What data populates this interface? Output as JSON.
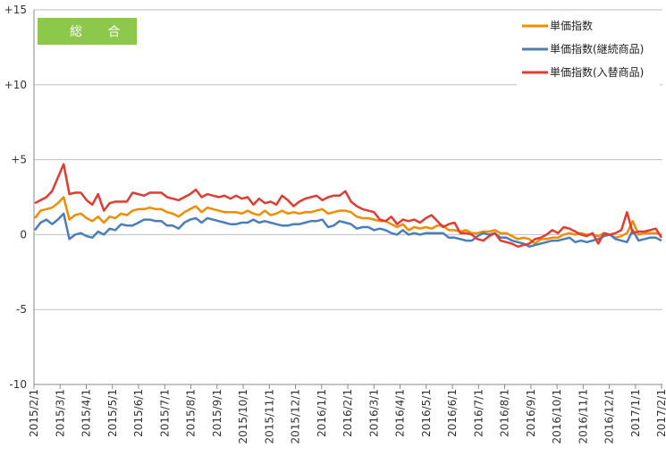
{
  "badge": {
    "label": "総 合",
    "color": "#8CC84B"
  },
  "chart_data": {
    "type": "line",
    "ylim": [
      -10,
      15
    ],
    "y_ticks": [
      -10,
      -5,
      0,
      5,
      10,
      15
    ],
    "y_tick_labels": [
      "-10",
      "-5",
      "0",
      "+5",
      "+10",
      "+15"
    ],
    "x_tick_labels": [
      "2015/2/1",
      "2015/3/1",
      "2015/4/1",
      "2015/5/1",
      "2015/6/1",
      "2015/7/1",
      "2015/8/1",
      "2015/9/1",
      "2015/10/1",
      "2015/11/1",
      "2015/12/1",
      "2016/1/1",
      "2016/2/1",
      "2016/3/1",
      "2016/4/1",
      "2016/5/1",
      "2016/6/1",
      "2016/7/1",
      "2016/8/1",
      "2016/9/1",
      "2016/10/1",
      "2016/11/1",
      "2016/12/1",
      "2017/1/1",
      "2017/2/1"
    ],
    "legend_position": "top-right",
    "grid": true,
    "series": [
      {
        "name": "単価指数",
        "color": "#F08C00",
        "values": [
          1.1,
          1.6,
          1.7,
          1.8,
          2.1,
          2.5,
          1.0,
          1.3,
          1.4,
          1.1,
          0.9,
          1.2,
          0.8,
          1.2,
          1.1,
          1.4,
          1.3,
          1.6,
          1.7,
          1.7,
          1.8,
          1.7,
          1.7,
          1.5,
          1.4,
          1.2,
          1.5,
          1.7,
          1.9,
          1.5,
          1.8,
          1.7,
          1.6,
          1.5,
          1.5,
          1.5,
          1.4,
          1.6,
          1.4,
          1.3,
          1.6,
          1.3,
          1.4,
          1.6,
          1.4,
          1.5,
          1.4,
          1.5,
          1.5,
          1.6,
          1.7,
          1.4,
          1.5,
          1.6,
          1.6,
          1.5,
          1.2,
          1.1,
          1.1,
          1.0,
          0.9,
          0.9,
          0.7,
          0.5,
          0.7,
          0.3,
          0.5,
          0.4,
          0.5,
          0.4,
          0.6,
          0.6,
          0.3,
          0.3,
          0.2,
          0.3,
          0.1,
          0.1,
          0.2,
          0.2,
          0.3,
          0.1,
          0.1,
          -0.1,
          -0.3,
          -0.2,
          -0.3,
          -0.6,
          -0.3,
          -0.3,
          -0.2,
          -0.2,
          0.0,
          0.1,
          0.0,
          0.1,
          0.0,
          0.0,
          -0.1,
          0.1,
          0.0,
          -0.2,
          -0.1,
          0.1,
          0.9,
          0.0,
          0.1,
          0.1,
          0.1,
          0.0
        ]
      },
      {
        "name": "単価指数(継続商品)",
        "color": "#4A7EBB",
        "values": [
          0.3,
          0.8,
          1.0,
          0.7,
          1.0,
          1.4,
          -0.3,
          0.0,
          0.1,
          -0.1,
          -0.2,
          0.2,
          0.0,
          0.4,
          0.3,
          0.7,
          0.6,
          0.6,
          0.8,
          1.0,
          1.0,
          0.9,
          0.9,
          0.6,
          0.6,
          0.4,
          0.8,
          1.0,
          1.1,
          0.8,
          1.1,
          1.0,
          0.9,
          0.8,
          0.7,
          0.7,
          0.8,
          0.8,
          1.0,
          0.8,
          0.9,
          0.8,
          0.7,
          0.6,
          0.6,
          0.7,
          0.7,
          0.8,
          0.9,
          0.9,
          1.0,
          0.5,
          0.6,
          0.9,
          0.8,
          0.7,
          0.4,
          0.5,
          0.5,
          0.3,
          0.4,
          0.3,
          0.1,
          0.0,
          0.3,
          0.0,
          0.1,
          0.0,
          0.1,
          0.1,
          0.1,
          0.1,
          -0.2,
          -0.2,
          -0.3,
          -0.4,
          -0.4,
          -0.1,
          0.1,
          0.0,
          0.1,
          -0.2,
          -0.2,
          -0.4,
          -0.5,
          -0.6,
          -0.8,
          -0.7,
          -0.6,
          -0.5,
          -0.4,
          -0.4,
          -0.3,
          -0.2,
          -0.5,
          -0.4,
          -0.5,
          -0.4,
          -0.3,
          -0.1,
          0.0,
          -0.3,
          -0.4,
          -0.5,
          0.3,
          -0.4,
          -0.3,
          -0.2,
          -0.2,
          -0.4
        ]
      },
      {
        "name": "単価指数(入替商品)",
        "color": "#E03C31",
        "values": [
          2.1,
          2.3,
          2.5,
          2.9,
          3.8,
          4.7,
          2.7,
          2.8,
          2.8,
          2.3,
          2.0,
          2.7,
          1.6,
          2.1,
          2.2,
          2.2,
          2.2,
          2.8,
          2.7,
          2.6,
          2.8,
          2.8,
          2.8,
          2.5,
          2.4,
          2.3,
          2.5,
          2.7,
          3.0,
          2.5,
          2.7,
          2.6,
          2.5,
          2.6,
          2.4,
          2.6,
          2.4,
          2.5,
          2.0,
          2.4,
          2.1,
          2.2,
          2.0,
          2.6,
          2.3,
          1.9,
          2.2,
          2.4,
          2.5,
          2.6,
          2.3,
          2.5,
          2.6,
          2.6,
          2.9,
          2.2,
          1.9,
          1.7,
          1.6,
          1.5,
          1.0,
          0.9,
          1.2,
          0.7,
          1.0,
          0.9,
          1.0,
          0.8,
          1.1,
          1.3,
          0.9,
          0.5,
          0.7,
          0.8,
          0.1,
          0.1,
          0.0,
          -0.3,
          -0.4,
          -0.1,
          0.1,
          -0.4,
          -0.5,
          -0.6,
          -0.8,
          -0.7,
          -0.6,
          -0.3,
          -0.2,
          0.0,
          0.3,
          0.1,
          0.5,
          0.4,
          0.2,
          0.0,
          -0.1,
          0.1,
          -0.6,
          0.1,
          0.0,
          0.1,
          0.3,
          1.5,
          0.1,
          0.2,
          0.2,
          0.3,
          0.4,
          -0.2
        ]
      }
    ]
  }
}
